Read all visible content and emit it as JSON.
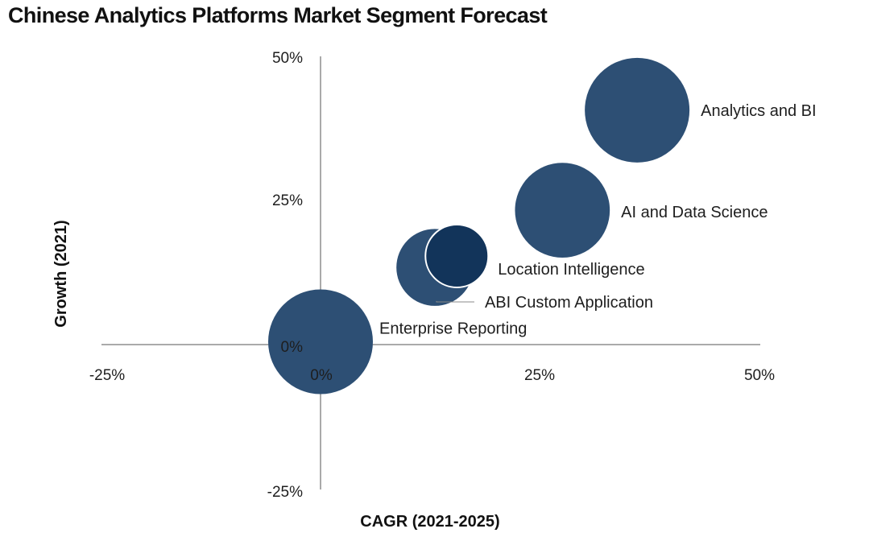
{
  "chart_data": {
    "type": "scatter",
    "subtype": "bubble",
    "title": "Chinese Analytics Platforms Market Segment Forecast",
    "xlabel": "CAGR (2021-2025)",
    "ylabel": "Growth (2021)",
    "xlim": [
      -25,
      50
    ],
    "ylim": [
      -25,
      50
    ],
    "x_ticks": [
      "-25%",
      "0%",
      "25%",
      "50%"
    ],
    "y_ticks": [
      "50%",
      "25%",
      "0%",
      "-25%"
    ],
    "bubble_color": "#2d4f74",
    "bubble_color_overlap": "#12345a",
    "points": [
      {
        "label": "Analytics and BI",
        "x": 36,
        "y": 41,
        "size": 1.0
      },
      {
        "label": "AI and Data Science",
        "x": 27.5,
        "y": 23.5,
        "size": 0.82
      },
      {
        "label": "Location Intelligence",
        "x": 15.5,
        "y": 15.5,
        "size": 0.36
      },
      {
        "label": "ABI Custom Application",
        "x": 13,
        "y": 13.5,
        "size": 0.54
      },
      {
        "label": "Enterprise Reporting",
        "x": 0,
        "y": 0.5,
        "size": 1.0
      }
    ]
  }
}
